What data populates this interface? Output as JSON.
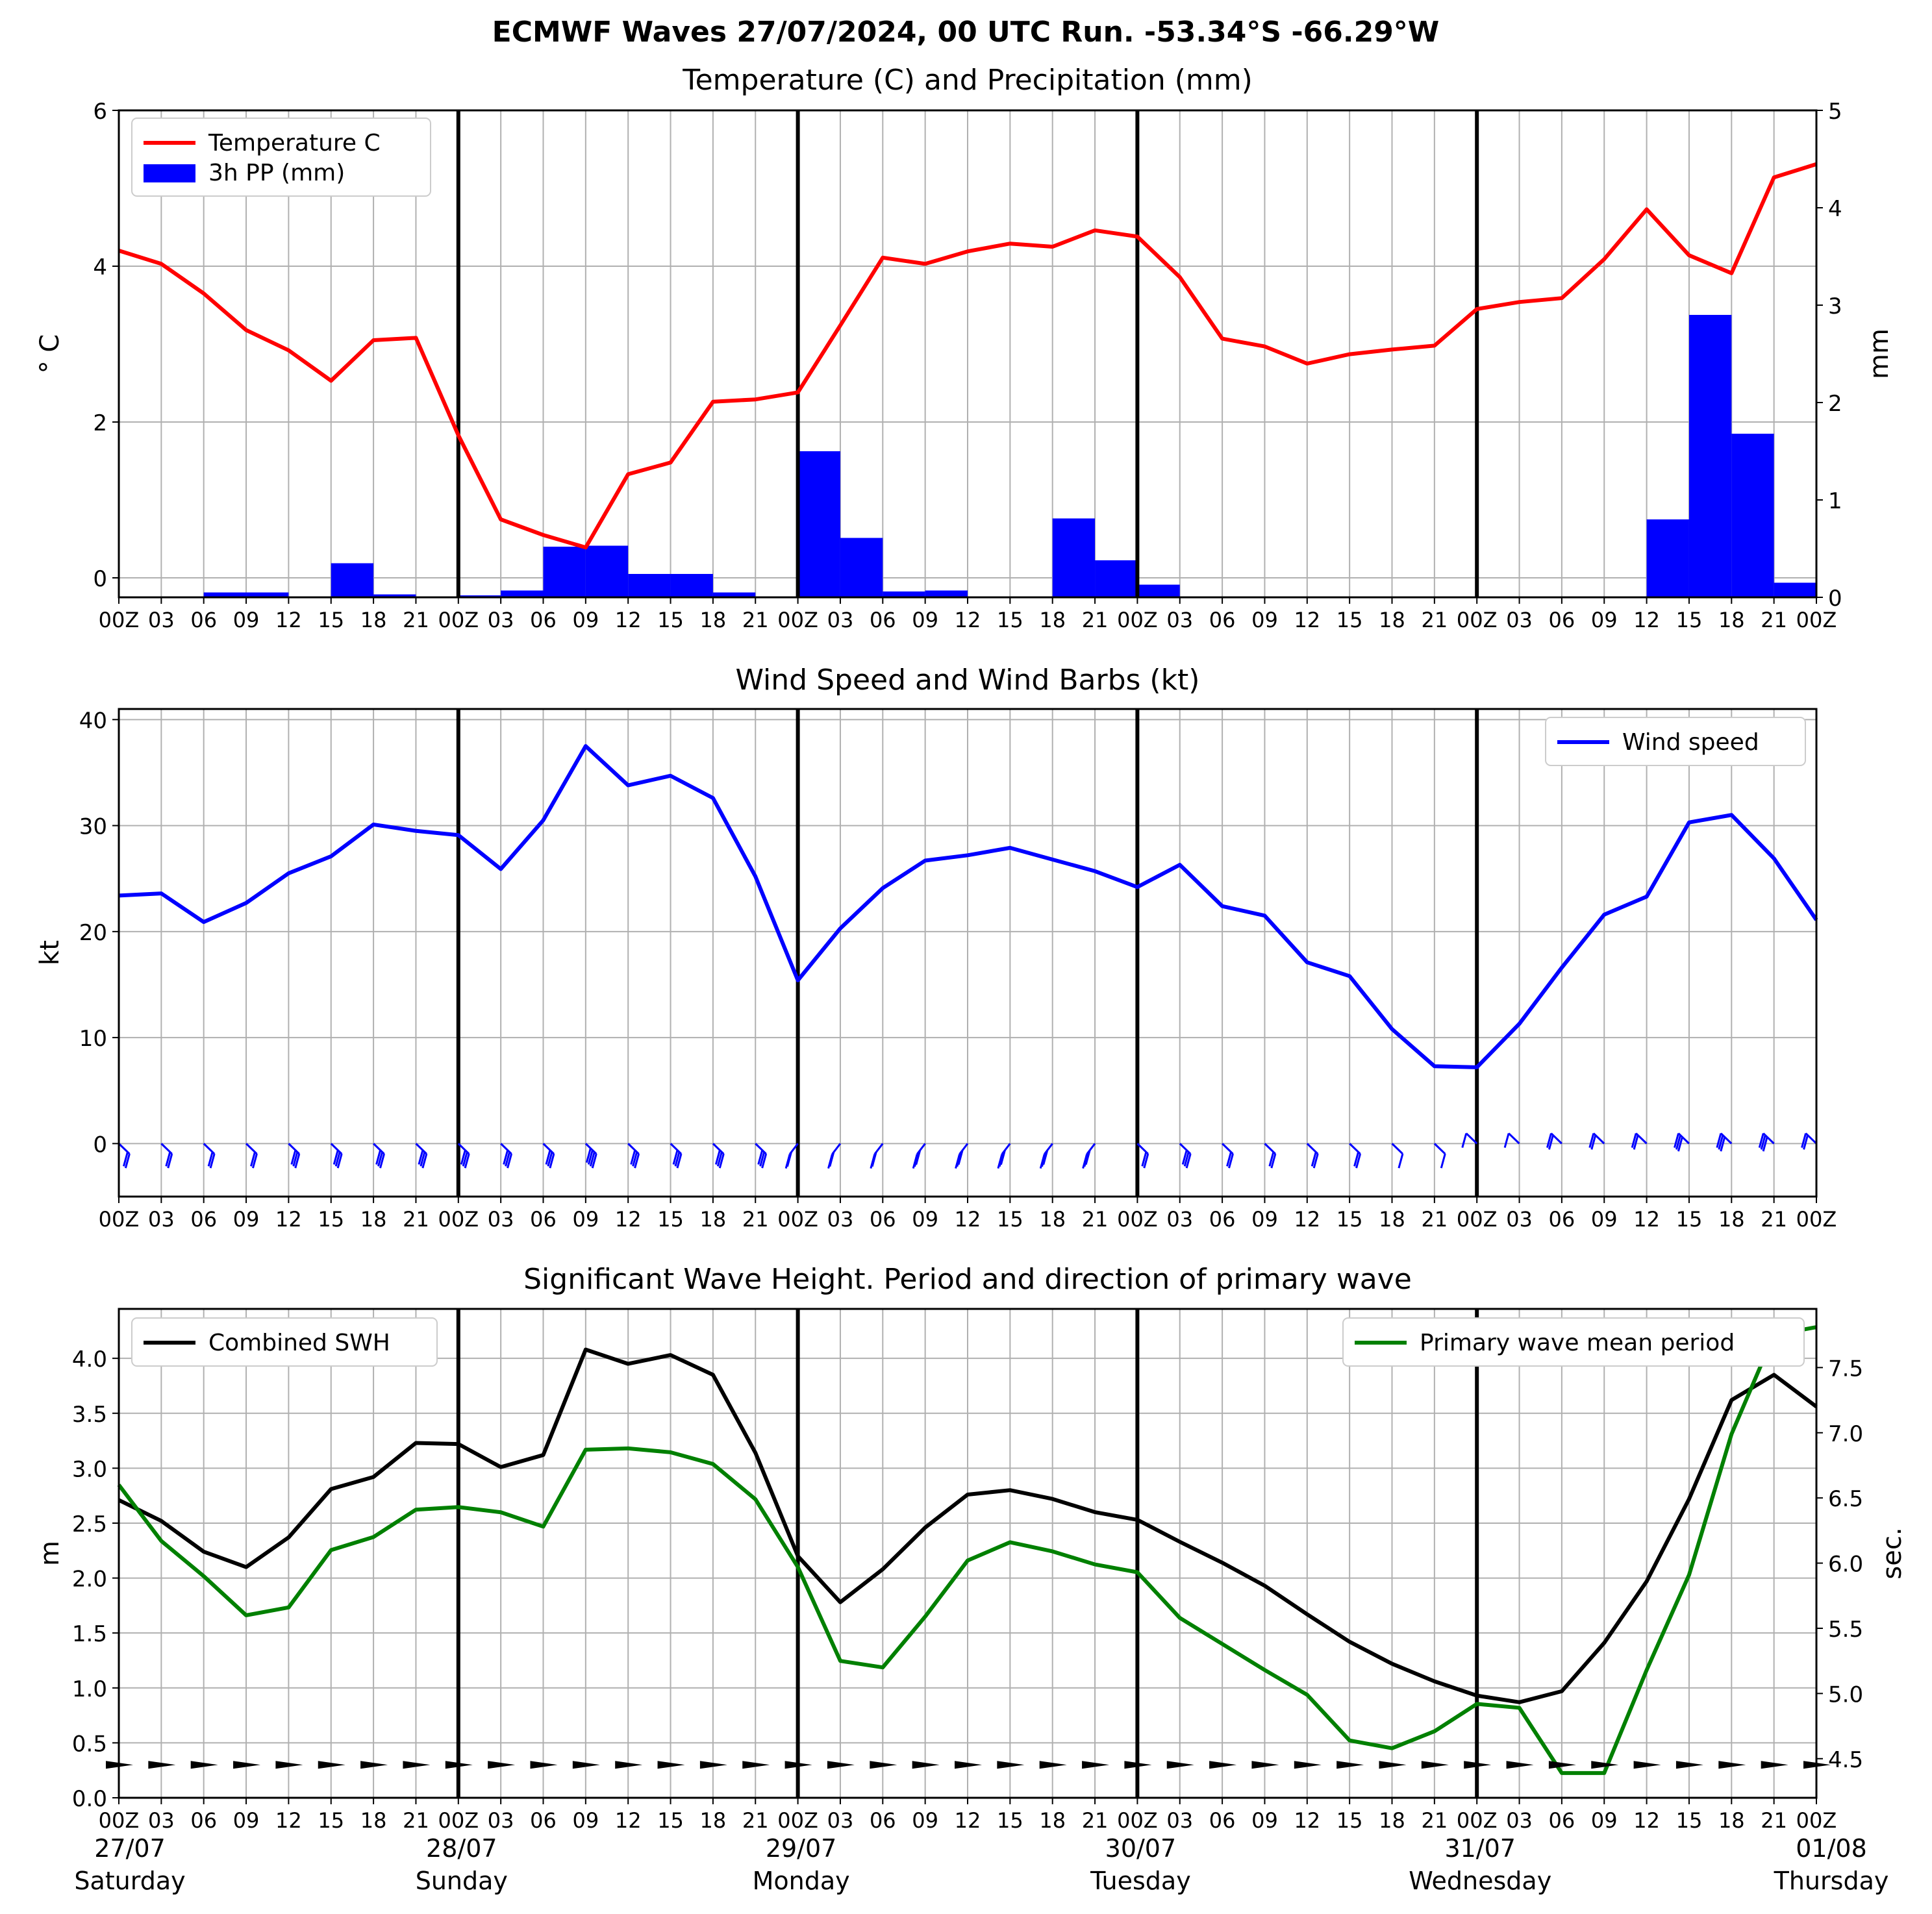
{
  "title": "ECMWF Waves 27/07/2024, 00 UTC Run. -53.34°S -66.29°W",
  "x_ticks": [
    "00Z",
    "03",
    "06",
    "09",
    "12",
    "15",
    "18",
    "21",
    "00Z",
    "03",
    "06",
    "09",
    "12",
    "15",
    "18",
    "21",
    "00Z",
    "03",
    "06",
    "09",
    "12",
    "15",
    "18",
    "21",
    "00Z",
    "03",
    "06",
    "09",
    "12",
    "15",
    "18",
    "21",
    "00Z",
    "03",
    "06",
    "09",
    "12",
    "15",
    "18",
    "21",
    "00Z"
  ],
  "day_labels": [
    {
      "date": "27/07",
      "day": "Saturday"
    },
    {
      "date": "28/07",
      "day": "Sunday"
    },
    {
      "date": "29/07",
      "day": "Monday"
    },
    {
      "date": "30/07",
      "day": "Tuesday"
    },
    {
      "date": "31/07",
      "day": "Wednesday"
    },
    {
      "date": "01/08",
      "day": "Thursday"
    }
  ],
  "chart_data": [
    {
      "type": "line",
      "title": "Temperature (C) and Precipitation (mm)",
      "ylabel": "$^\\circ$C",
      "ylabel_display": "° C",
      "y2label": "mm",
      "ylim": [
        -0.25,
        6
      ],
      "yticks": [
        0,
        2,
        4,
        6
      ],
      "y2lim": [
        0,
        5
      ],
      "y2ticks": [
        0,
        1,
        2,
        3,
        4,
        5
      ],
      "grid": true,
      "legend_position": "upper-left",
      "x_hours": [
        0,
        3,
        6,
        9,
        12,
        15,
        18,
        21,
        24,
        27,
        30,
        33,
        36,
        39,
        42,
        45,
        48,
        51,
        54,
        57,
        60,
        63,
        66,
        69,
        72,
        75,
        78,
        81,
        84,
        87,
        90,
        93,
        96,
        99,
        102,
        105,
        108,
        111,
        114,
        117,
        120
      ],
      "series": [
        {
          "name": "Temperature C",
          "kind": "line",
          "color": "#ff0000",
          "values": [
            4.2,
            4.03,
            3.65,
            3.18,
            2.92,
            2.53,
            3.05,
            3.08,
            1.83,
            0.75,
            0.55,
            0.39,
            1.33,
            1.48,
            2.26,
            2.29,
            2.38,
            3.24,
            4.11,
            4.03,
            4.19,
            4.29,
            4.25,
            4.46,
            4.38,
            3.86,
            3.07,
            2.97,
            2.75,
            2.87,
            2.93,
            2.98,
            3.45,
            3.54,
            3.59,
            4.09,
            4.73,
            4.14,
            3.91,
            5.14,
            5.31
          ]
        },
        {
          "name": "3h PP (mm)",
          "kind": "bar",
          "axis": "right",
          "color": "#0000ff",
          "values": [
            0,
            0,
            0.05,
            0.05,
            0.01,
            0.35,
            0.03,
            0,
            0.02,
            0.07,
            0.52,
            0.53,
            0.24,
            0.24,
            0.05,
            0,
            1.5,
            0.61,
            0.06,
            0.07,
            0,
            0,
            0.81,
            0.38,
            0.13,
            0,
            0.01,
            0,
            0,
            0,
            0,
            0,
            0,
            0,
            0,
            0,
            0.8,
            2.9,
            1.68,
            0.15
          ]
        }
      ]
    },
    {
      "type": "line",
      "title": "Wind Speed and Wind Barbs (kt)",
      "ylabel": "kt",
      "ylim": [
        -5,
        41
      ],
      "yticks": [
        0,
        10,
        20,
        30,
        40
      ],
      "grid": true,
      "legend_position": "upper-right",
      "x_hours": [
        0,
        3,
        6,
        9,
        12,
        15,
        18,
        21,
        24,
        27,
        30,
        33,
        36,
        39,
        42,
        45,
        48,
        51,
        54,
        57,
        60,
        63,
        66,
        69,
        72,
        75,
        78,
        81,
        84,
        87,
        90,
        93,
        96,
        99,
        102,
        105,
        108,
        111,
        114,
        117,
        120
      ],
      "series": [
        {
          "name": "Wind speed",
          "color": "#0000ff",
          "values": [
            23.4,
            23.6,
            20.9,
            22.7,
            25.5,
            27.1,
            30.1,
            29.5,
            29.1,
            25.9,
            30.5,
            37.5,
            33.8,
            34.7,
            32.6,
            25.2,
            15.4,
            20.3,
            24.1,
            26.7,
            27.2,
            27.9,
            26.8,
            25.7,
            24.2,
            26.3,
            22.4,
            21.5,
            17.1,
            15.8,
            10.8,
            7.3,
            7.2,
            11.3,
            16.6,
            21.6,
            23.3,
            30.3,
            31.0,
            26.9,
            21.1
          ]
        }
      ],
      "barb_color": "#0000ff"
    },
    {
      "type": "line",
      "title": "Significant Wave Height. Period and direction of primary wave",
      "ylabel": "m",
      "y2label": "sec.",
      "ylim": [
        0,
        4.45
      ],
      "yticks": [
        0.0,
        0.5,
        1.0,
        1.5,
        2.0,
        2.5,
        3.0,
        3.5,
        4.0
      ],
      "y2lim": [
        4.2,
        7.95
      ],
      "y2ticks": [
        4.5,
        5.0,
        5.5,
        6.0,
        6.5,
        7.0,
        7.5
      ],
      "grid": true,
      "x_hours": [
        0,
        3,
        6,
        9,
        12,
        15,
        18,
        21,
        24,
        27,
        30,
        33,
        36,
        39,
        42,
        45,
        48,
        51,
        54,
        57,
        60,
        63,
        66,
        69,
        72,
        75,
        78,
        81,
        84,
        87,
        90,
        93,
        96,
        99,
        102,
        105,
        108,
        111,
        114,
        117,
        120
      ],
      "series": [
        {
          "name": "Combined SWH",
          "color": "#000000",
          "axis": "left",
          "legend_position": "upper-left",
          "values": [
            2.71,
            2.52,
            2.24,
            2.1,
            2.37,
            2.81,
            2.92,
            3.23,
            3.22,
            3.01,
            3.12,
            4.08,
            3.95,
            4.03,
            3.85,
            3.14,
            2.2,
            1.78,
            2.08,
            2.46,
            2.76,
            2.8,
            2.72,
            2.6,
            2.53,
            2.33,
            2.14,
            1.93,
            1.67,
            1.42,
            1.22,
            1.06,
            0.93,
            0.87,
            0.97,
            1.41,
            1.97,
            2.72,
            3.62,
            3.85,
            3.56
          ]
        },
        {
          "name": "Primary wave mean period",
          "color": "#008000",
          "axis": "right",
          "legend_position": "upper-right",
          "values": [
            6.6,
            6.17,
            5.9,
            5.6,
            5.66,
            6.1,
            6.2,
            6.41,
            6.43,
            6.39,
            6.28,
            6.87,
            6.88,
            6.85,
            6.76,
            6.49,
            5.97,
            5.25,
            5.2,
            5.59,
            6.02,
            6.16,
            6.09,
            5.99,
            5.93,
            5.58,
            5.38,
            5.18,
            4.99,
            4.64,
            4.58,
            4.71,
            4.92,
            4.89,
            4.39,
            4.39,
            5.18,
            5.91,
            6.99,
            7.75,
            7.81
          ]
        }
      ]
    }
  ]
}
